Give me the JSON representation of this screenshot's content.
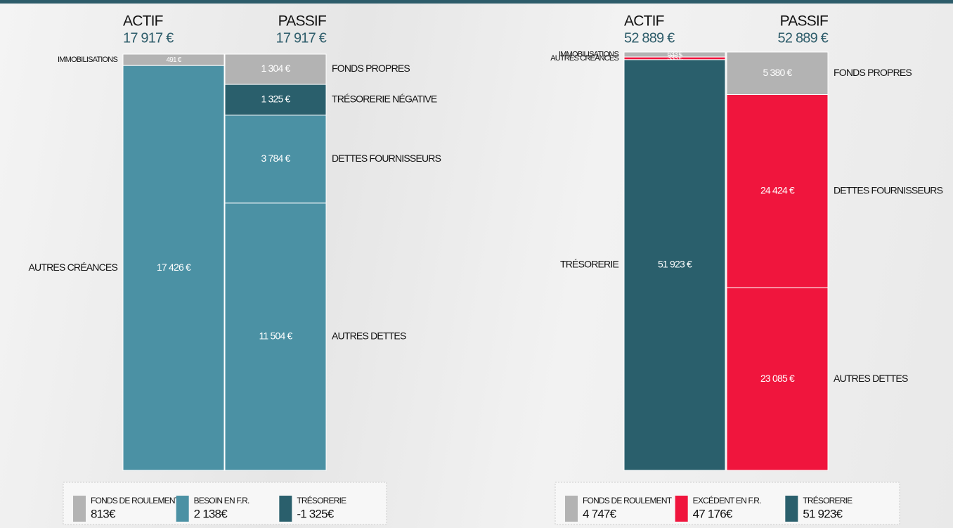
{
  "chart_data": [
    {
      "type": "balance-sheet",
      "columns": [
        {
          "title": "ACTIF",
          "total": 17917,
          "total_label": "17 917 €",
          "categories": [
            "IMMOBILISATIONS",
            "AUTRES CRÉANCES"
          ],
          "values": [
            491,
            17426
          ],
          "value_labels": [
            "491 €",
            "17 426 €"
          ],
          "colors": [
            "#b3b3b3",
            "#4b91a4"
          ]
        },
        {
          "title": "PASSIF",
          "total": 17917,
          "total_label": "17 917 €",
          "categories": [
            "FONDS PROPRES",
            "TRÉSORERIE NÉGATIVE",
            "DETTES FOURNISSEURS",
            "AUTRES DETTES"
          ],
          "values": [
            1304,
            1325,
            3784,
            11504
          ],
          "value_labels": [
            "1 304 €",
            "1 325 €",
            "3 784 €",
            "11 504 €"
          ],
          "colors": [
            "#b3b3b3",
            "#2a5f6c",
            "#4b91a4",
            "#4b91a4"
          ]
        }
      ],
      "legend": {
        "names": [
          "FONDS DE ROULEMENT",
          "BESOIN EN F.R.",
          "TRÉSORERIE"
        ],
        "colors": [
          "#b3b3b3",
          "#4b91a4",
          "#2a5f6c"
        ],
        "values": [
          813,
          2138,
          -1325
        ],
        "value_labels": [
          "813€",
          "2 138€",
          "-1 325€"
        ]
      }
    },
    {
      "type": "balance-sheet",
      "columns": [
        {
          "title": "ACTIF",
          "total": 52889,
          "total_label": "52 889 €",
          "categories": [
            "IMMOBILISATIONS",
            "AUTRES CRÉANCES",
            "TRÉSORERIE"
          ],
          "values": [
            633,
            333,
            51923
          ],
          "value_labels": [
            "633 €",
            "333 €",
            "51 923 €"
          ],
          "colors": [
            "#b3b3b3",
            "#f0153d",
            "#2a5f6c"
          ]
        },
        {
          "title": "PASSIF",
          "total": 52889,
          "total_label": "52 889 €",
          "categories": [
            "FONDS PROPRES",
            "DETTES FOURNISSEURS",
            "AUTRES DETTES"
          ],
          "values": [
            5380,
            24424,
            23085
          ],
          "value_labels": [
            "5 380 €",
            "24 424 €",
            "23 085 €"
          ],
          "colors": [
            "#b3b3b3",
            "#f0153d",
            "#f0153d"
          ]
        }
      ],
      "legend": {
        "names": [
          "FONDS DE ROULEMENT",
          "EXCÉDENT EN F.R.",
          "TRÉSORERIE"
        ],
        "colors": [
          "#b3b3b3",
          "#f0153d",
          "#2a5f6c"
        ],
        "values": [
          4747,
          47176,
          51923
        ],
        "value_labels": [
          "4 747€",
          "47 176€",
          "51 923€"
        ]
      }
    }
  ]
}
